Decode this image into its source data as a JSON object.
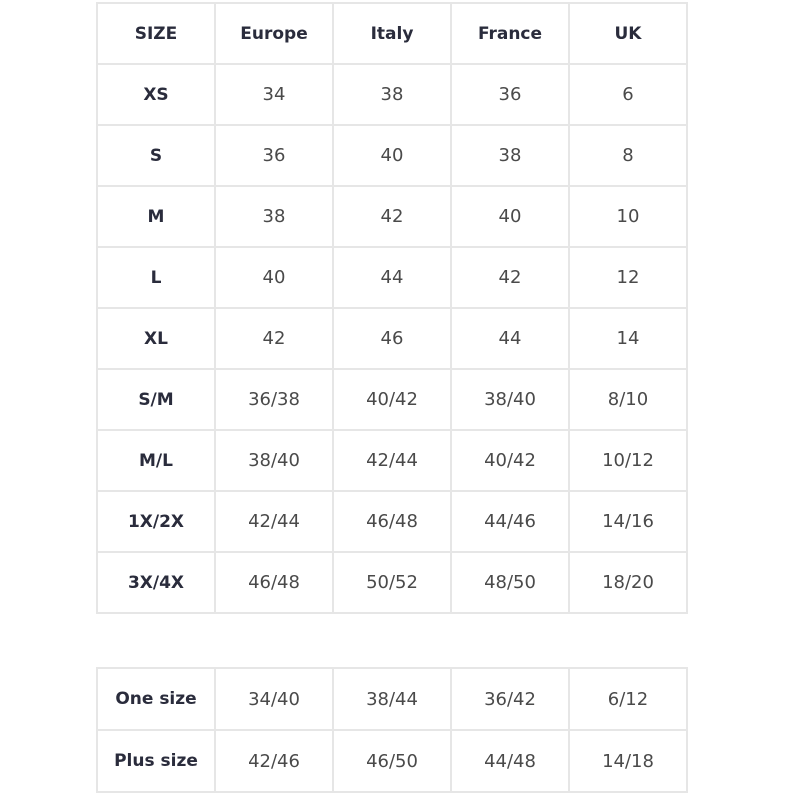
{
  "table": {
    "headers": [
      "SIZE",
      "Europe",
      "Italy",
      "France",
      "UK"
    ],
    "rows": [
      [
        "XS",
        "34",
        "38",
        "36",
        "6"
      ],
      [
        "S",
        "36",
        "40",
        "38",
        "8"
      ],
      [
        "M",
        "38",
        "42",
        "40",
        "10"
      ],
      [
        "L",
        "40",
        "44",
        "42",
        "12"
      ],
      [
        "XL",
        "42",
        "46",
        "44",
        "14"
      ],
      [
        "S/M",
        "36/38",
        "40/42",
        "38/40",
        "8/10"
      ],
      [
        "M/L",
        "38/40",
        "42/44",
        "40/42",
        "10/12"
      ],
      [
        "1X/2X",
        "42/44",
        "46/48",
        "44/46",
        "14/16"
      ],
      [
        "3X/4X",
        "46/48",
        "50/52",
        "48/50",
        "18/20"
      ]
    ]
  },
  "table2": {
    "rows": [
      [
        "One size",
        "34/40",
        "38/44",
        "36/42",
        "6/12"
      ],
      [
        "Plus size",
        "42/46",
        "46/50",
        "44/48",
        "14/18"
      ]
    ]
  }
}
